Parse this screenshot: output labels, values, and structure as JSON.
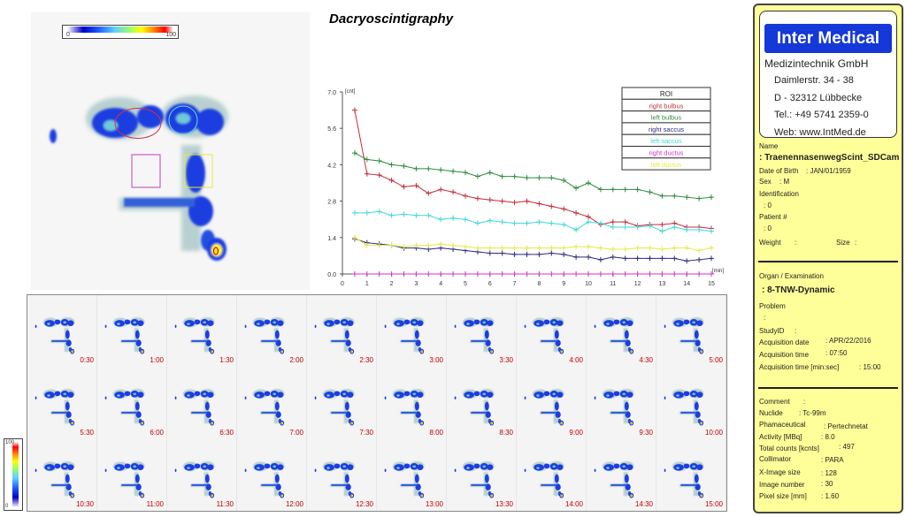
{
  "main_image": {
    "colorbar": {
      "min": "0",
      "max": "100"
    }
  },
  "title": "Dacryoscintigraphy",
  "chart_data": {
    "type": "line",
    "title": "Dacryoscintigraphy",
    "xlabel": "[min]",
    "ylabel": "[cnt]",
    "xlim": [
      0,
      15
    ],
    "ylim": [
      0,
      7
    ],
    "xticks": [
      "0",
      "1",
      "2",
      "3",
      "4",
      "5",
      "6",
      "7",
      "8",
      "9",
      "10",
      "11",
      "12",
      "13",
      "14",
      "15"
    ],
    "yticks": [
      "0.0",
      "1.4",
      "2.8",
      "4.2",
      "5.6",
      "7.0"
    ],
    "legend_title": "ROI",
    "legend_position": "top-right",
    "grid": false,
    "x": [
      0.5,
      1,
      1.5,
      2,
      2.5,
      3,
      3.5,
      4,
      4.5,
      5,
      5.5,
      6,
      6.5,
      7,
      7.5,
      8,
      8.5,
      9,
      9.5,
      10,
      10.5,
      11,
      11.5,
      12,
      12.5,
      13,
      13.5,
      14,
      14.5,
      15
    ],
    "series": [
      {
        "name": "right bulbus",
        "color": "#c0303a",
        "values": [
          6.3,
          3.85,
          3.8,
          3.6,
          3.35,
          3.4,
          3.1,
          3.25,
          3.15,
          3.0,
          2.9,
          2.85,
          2.8,
          2.75,
          2.8,
          2.7,
          2.6,
          2.5,
          2.35,
          2.2,
          1.9,
          2.0,
          2.0,
          1.85,
          1.9,
          1.9,
          1.95,
          1.8,
          1.8,
          1.75
        ]
      },
      {
        "name": "left bulbus",
        "color": "#2e8b3e",
        "values": [
          4.65,
          4.4,
          4.35,
          4.2,
          4.15,
          4.05,
          4.05,
          4.0,
          3.95,
          3.9,
          3.75,
          3.9,
          3.75,
          3.75,
          3.7,
          3.7,
          3.7,
          3.6,
          3.3,
          3.5,
          3.25,
          3.25,
          3.25,
          3.25,
          3.15,
          3.0,
          3.0,
          2.95,
          2.9,
          2.95
        ]
      },
      {
        "name": "right saccus",
        "color": "#2a2a80",
        "values": [
          1.35,
          1.2,
          1.15,
          1.1,
          1.0,
          1.0,
          0.95,
          1.0,
          0.95,
          0.9,
          0.85,
          0.8,
          0.8,
          0.75,
          0.75,
          0.75,
          0.8,
          0.75,
          0.65,
          0.65,
          0.55,
          0.65,
          0.6,
          0.6,
          0.6,
          0.6,
          0.6,
          0.5,
          0.55,
          0.6
        ]
      },
      {
        "name": "left saccus",
        "color": "#40d8d8",
        "values": [
          2.35,
          2.35,
          2.4,
          2.25,
          2.3,
          2.25,
          2.25,
          2.1,
          2.15,
          2.1,
          1.95,
          2.05,
          2.0,
          1.95,
          1.95,
          2.0,
          1.95,
          1.9,
          1.7,
          2.0,
          1.95,
          1.8,
          1.8,
          1.8,
          1.85,
          1.65,
          1.8,
          1.7,
          1.7,
          1.65
        ]
      },
      {
        "name": "right ductus",
        "color": "#d030c8",
        "values": [
          0,
          0,
          0,
          0,
          0,
          0,
          0,
          0,
          0,
          0,
          0,
          0,
          0,
          0,
          0,
          0,
          0,
          0,
          0,
          0,
          0,
          0,
          0,
          0,
          0,
          0,
          0,
          0,
          0,
          0
        ]
      },
      {
        "name": "left ductus",
        "color": "#e8e840",
        "values": [
          1.4,
          1.1,
          1.1,
          1.1,
          1.05,
          1.1,
          1.1,
          1.15,
          1.1,
          1.05,
          1.0,
          1.0,
          1.0,
          1.0,
          1.0,
          1.0,
          1.0,
          1.0,
          1.05,
          1.05,
          1.0,
          0.95,
          0.95,
          1.0,
          1.0,
          0.95,
          1.0,
          1.0,
          0.9,
          1.0
        ]
      }
    ]
  },
  "thumbnails": [
    "0:30",
    "1:00",
    "1:30",
    "2:00",
    "2:30",
    "3:00",
    "3:30",
    "4:00",
    "4:30",
    "5:00",
    "5:30",
    "6:00",
    "6:30",
    "7:00",
    "7:30",
    "8:00",
    "8:30",
    "9:00",
    "9:30",
    "10:00",
    "10:30",
    "11:00",
    "11:30",
    "12:00",
    "12:30",
    "13:00",
    "13:30",
    "14:00",
    "14:30",
    "15:00"
  ],
  "small_colorbar": {
    "min": "0",
    "max": "100"
  },
  "panel": {
    "logo": "Inter Medical",
    "company": "Medizintechnik GmbH",
    "street": "Daimlerstr. 34 - 38",
    "city": "D - 32312 Lübbecke",
    "tel": "Tel.: +49 5741 2359-0",
    "web": "Web: www.IntMed.de",
    "name_label": "Name",
    "name_value": ": TraenennasenwegScint_SDCam",
    "dob_label": "Date of Birth",
    "dob_value": ": JAN/01/1959",
    "sex_label": "Sex",
    "sex_value": ": M",
    "id_label": "Identification",
    "id_value": ": 0",
    "patient_label": "Patient #",
    "patient_value": ": 0",
    "weight_label": "Weight",
    "weight_value": ":",
    "size_label": "Size",
    "size_value": ":",
    "organ_label": "Organ / Examination",
    "organ_value": ": 8-TNW-Dynamic",
    "problem_label": "Problem",
    "problem_value": ":",
    "study_label": "StudyID",
    "study_value": ":",
    "acqdate_label": "Acquisition date",
    "acqdate_value": ": APR/22/2016",
    "acqtime_label": "Acquisition time",
    "acqtime_value": ": 07:50",
    "acqdur_label": "Acquisition time [min:sec]",
    "acqdur_value": ": 15:00",
    "comment_label": "Comment",
    "comment_value": ":",
    "nuclide_label": "Nuclide",
    "nuclide_value": ": Tc-99m",
    "pharma_label": "Phamaceutical",
    "pharma_value": ": Pertechnetat",
    "activity_label": "Activity [MBq]",
    "activity_value": ":  8.0",
    "counts_label": "Total counts [kcnts]",
    "counts_value": ": 497",
    "coll_label": "Collimator",
    "coll_value": ": PARA",
    "ximg_label": "X-Image size",
    "ximg_value": ": 128",
    "imgnum_label": "Image number",
    "imgnum_value": ":  30",
    "pix_label": "Pixel size [mm]",
    "pix_value": ": 1.60"
  }
}
